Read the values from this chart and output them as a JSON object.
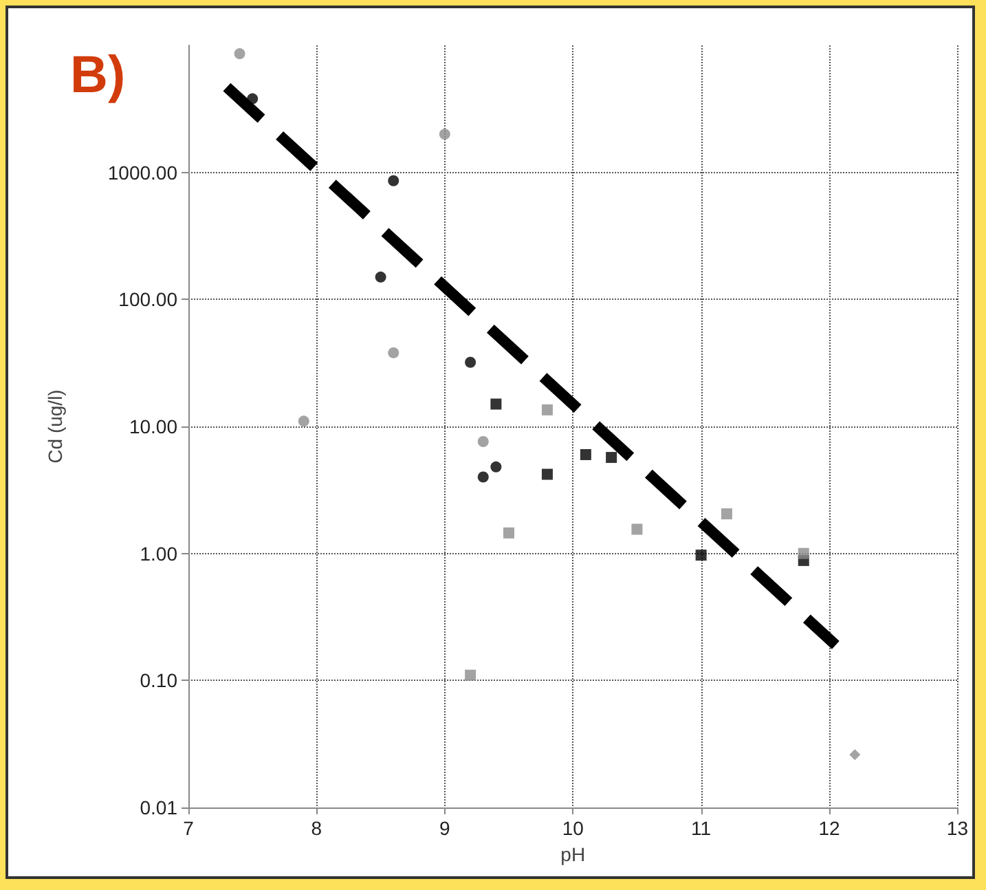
{
  "chart_data": {
    "type": "scatter",
    "title": "B)",
    "xlabel": "pH",
    "ylabel": "Cd (ug/l)",
    "log": "y",
    "grid": true,
    "xlim": [
      7,
      13
    ],
    "xticks": [
      7,
      8,
      9,
      10,
      11,
      12,
      13
    ],
    "ylim": [
      0.01,
      10000
    ],
    "yticks": [
      {
        "value": 0.01,
        "label": "0.01"
      },
      {
        "value": 0.1,
        "label": "0.10"
      },
      {
        "value": 1,
        "label": "1.00"
      },
      {
        "value": 10,
        "label": "10.00"
      },
      {
        "value": 100,
        "label": "100.00"
      },
      {
        "value": 1000,
        "label": "1000.00"
      }
    ],
    "series": [
      {
        "type": "scatter",
        "marker": "circle",
        "color": "#8c8c8c",
        "x": [
          7.4,
          9.0,
          8.6,
          7.9,
          9.3
        ],
        "values": [
          8600,
          2000,
          38,
          11,
          7.6
        ]
      },
      {
        "type": "scatter",
        "marker": "circle",
        "color": "#000000",
        "x": [
          7.5,
          8.6,
          8.5,
          9.2,
          9.3,
          9.4
        ],
        "values": [
          3800,
          860,
          150,
          32,
          4.0,
          4.8
        ]
      },
      {
        "type": "scatter",
        "marker": "square",
        "color": "#000000",
        "x": [
          9.4,
          9.8,
          10.1,
          10.3,
          11.0,
          11.8
        ],
        "values": [
          15,
          4.2,
          6.0,
          5.7,
          0.97,
          0.88
        ]
      },
      {
        "type": "scatter",
        "marker": "square",
        "color": "#8c8c8c",
        "x": [
          9.8,
          9.5,
          10.5,
          11.2,
          11.8,
          9.2
        ],
        "values": [
          13.5,
          1.45,
          1.55,
          2.05,
          1.0,
          0.11
        ]
      },
      {
        "type": "scatter",
        "marker": "diamond",
        "color": "#8c8c8c",
        "x": [
          12.2
        ],
        "values": [
          0.026
        ]
      },
      {
        "type": "line",
        "line_style": "dashed",
        "marker": "none",
        "color": "#000000",
        "x": [
          7.3,
          12.05
        ],
        "values": [
          4700,
          0.19
        ]
      }
    ]
  }
}
